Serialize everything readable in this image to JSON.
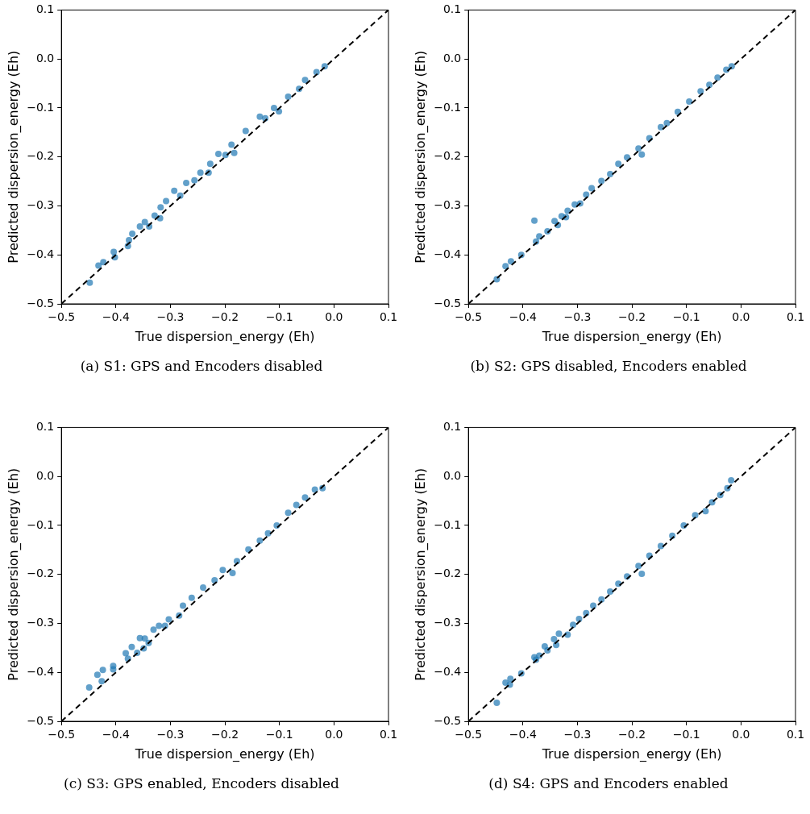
{
  "chart_data": [
    {
      "type": "scatter",
      "xlabel": "True dispersion_energy (Eh)",
      "ylabel": "Predicted dispersion_energy (Eh)",
      "annotations": [
        "(a) S1: GPS and Encoders disabled"
      ],
      "xlim": [
        -0.5,
        0.1
      ],
      "ylim": [
        -0.5,
        0.1
      ],
      "xticks": [
        {
          "value": -0.5,
          "label": "−0.5"
        },
        {
          "value": -0.4,
          "label": "−0.4"
        },
        {
          "value": -0.3,
          "label": "−0.3"
        },
        {
          "value": -0.2,
          "label": "−0.2"
        },
        {
          "value": -0.1,
          "label": "−0.1"
        },
        {
          "value": 0,
          "label": "0.0"
        },
        {
          "value": 0.1,
          "label": "0.1"
        }
      ],
      "yticks": [
        {
          "value": -0.5,
          "label": "−0.5"
        },
        {
          "value": -0.4,
          "label": "−0.4"
        },
        {
          "value": -0.3,
          "label": "−0.3"
        },
        {
          "value": -0.2,
          "label": "−0.2"
        },
        {
          "value": -0.1,
          "label": "−0.1"
        },
        {
          "value": 0,
          "label": "0.0"
        },
        {
          "value": 0.1,
          "label": "0.1"
        }
      ],
      "marker": "circle",
      "series": [
        {
          "type": "scatter",
          "color": "#1f77b4",
          "x": [
            -0.448,
            -0.432,
            -0.423,
            -0.404,
            -0.402,
            -0.378,
            -0.376,
            -0.37,
            -0.356,
            -0.347,
            -0.339,
            -0.329,
            -0.319,
            -0.318,
            -0.308,
            -0.293,
            -0.282,
            -0.271,
            -0.256,
            -0.245,
            -0.23,
            -0.227,
            -0.212,
            -0.199,
            -0.183,
            -0.188,
            -0.162,
            -0.136,
            -0.126,
            -0.101,
            -0.11,
            -0.084,
            -0.064,
            -0.053,
            -0.032,
            -0.017
          ],
          "values": [
            -0.457,
            -0.422,
            -0.415,
            -0.394,
            -0.405,
            -0.382,
            -0.37,
            -0.357,
            -0.342,
            -0.333,
            -0.342,
            -0.32,
            -0.325,
            -0.303,
            -0.29,
            -0.269,
            -0.279,
            -0.253,
            -0.248,
            -0.232,
            -0.232,
            -0.214,
            -0.194,
            -0.196,
            -0.192,
            -0.175,
            -0.147,
            -0.118,
            -0.121,
            -0.107,
            -0.1,
            -0.077,
            -0.061,
            -0.043,
            -0.027,
            -0.015
          ]
        },
        {
          "type": "line",
          "color": "#000000",
          "line_style": "dashed",
          "marker": "none",
          "x": [
            -0.5,
            0.1
          ],
          "values": [
            -0.5,
            0.1
          ]
        }
      ]
    },
    {
      "type": "scatter",
      "xlabel": "True dispersion_energy (Eh)",
      "ylabel": "Predicted dispersion_energy (Eh)",
      "annotations": [
        "(b) S2: GPS disabled, Encoders enabled"
      ],
      "xlim": [
        -0.5,
        0.1
      ],
      "ylim": [
        -0.5,
        0.1
      ],
      "xticks": [
        {
          "value": -0.5,
          "label": "−0.5"
        },
        {
          "value": -0.4,
          "label": "−0.4"
        },
        {
          "value": -0.3,
          "label": "−0.3"
        },
        {
          "value": -0.2,
          "label": "−0.2"
        },
        {
          "value": -0.1,
          "label": "−0.1"
        },
        {
          "value": 0,
          "label": "0.0"
        },
        {
          "value": 0.1,
          "label": "0.1"
        }
      ],
      "yticks": [
        {
          "value": -0.5,
          "label": "−0.5"
        },
        {
          "value": -0.4,
          "label": "−0.4"
        },
        {
          "value": -0.3,
          "label": "−0.3"
        },
        {
          "value": -0.2,
          "label": "−0.2"
        },
        {
          "value": -0.1,
          "label": "−0.1"
        },
        {
          "value": 0,
          "label": "0.0"
        },
        {
          "value": 0.1,
          "label": "0.1"
        }
      ],
      "marker": "circle",
      "series": [
        {
          "type": "scatter",
          "color": "#1f77b4",
          "x": [
            -0.448,
            -0.432,
            -0.422,
            -0.403,
            -0.379,
            -0.376,
            -0.37,
            -0.355,
            -0.342,
            -0.336,
            -0.329,
            -0.321,
            -0.318,
            -0.305,
            -0.295,
            -0.284,
            -0.274,
            -0.256,
            -0.24,
            -0.225,
            -0.209,
            -0.182,
            -0.188,
            -0.168,
            -0.147,
            -0.136,
            -0.116,
            -0.095,
            -0.074,
            -0.058,
            -0.043,
            -0.027,
            -0.017
          ],
          "values": [
            -0.45,
            -0.423,
            -0.413,
            -0.4,
            -0.33,
            -0.373,
            -0.362,
            -0.352,
            -0.331,
            -0.339,
            -0.321,
            -0.323,
            -0.31,
            -0.297,
            -0.295,
            -0.277,
            -0.264,
            -0.249,
            -0.235,
            -0.214,
            -0.201,
            -0.195,
            -0.183,
            -0.162,
            -0.139,
            -0.131,
            -0.108,
            -0.087,
            -0.066,
            -0.053,
            -0.038,
            -0.022,
            -0.015
          ]
        },
        {
          "type": "line",
          "color": "#000000",
          "line_style": "dashed",
          "marker": "none",
          "x": [
            -0.5,
            0.1
          ],
          "values": [
            -0.5,
            0.1
          ]
        }
      ]
    },
    {
      "type": "scatter",
      "xlabel": "True dispersion_energy (Eh)",
      "ylabel": "Predicted dispersion_energy (Eh)",
      "annotations": [
        "(c) S3: GPS enabled, Encoders disabled"
      ],
      "xlim": [
        -0.5,
        0.1
      ],
      "ylim": [
        -0.5,
        0.1
      ],
      "xticks": [
        {
          "value": -0.5,
          "label": "−0.5"
        },
        {
          "value": -0.4,
          "label": "−0.4"
        },
        {
          "value": -0.3,
          "label": "−0.3"
        },
        {
          "value": -0.2,
          "label": "−0.2"
        },
        {
          "value": -0.1,
          "label": "−0.1"
        },
        {
          "value": 0,
          "label": "0.0"
        },
        {
          "value": 0.1,
          "label": "0.1"
        }
      ],
      "yticks": [
        {
          "value": -0.5,
          "label": "−0.5"
        },
        {
          "value": -0.4,
          "label": "−0.4"
        },
        {
          "value": -0.3,
          "label": "−0.3"
        },
        {
          "value": -0.2,
          "label": "−0.2"
        },
        {
          "value": -0.1,
          "label": "−0.1"
        },
        {
          "value": 0,
          "label": "0.0"
        },
        {
          "value": 0.1,
          "label": "0.1"
        }
      ],
      "marker": "circle",
      "series": [
        {
          "type": "scatter",
          "color": "#1f77b4",
          "x": [
            -0.449,
            -0.434,
            -0.424,
            -0.426,
            -0.405,
            -0.405,
            -0.382,
            -0.378,
            -0.371,
            -0.361,
            -0.356,
            -0.349,
            -0.347,
            -0.34,
            -0.331,
            -0.321,
            -0.31,
            -0.303,
            -0.284,
            -0.277,
            -0.261,
            -0.24,
            -0.219,
            -0.204,
            -0.186,
            -0.178,
            -0.157,
            -0.136,
            -0.121,
            -0.105,
            -0.084,
            -0.069,
            -0.053,
            -0.035,
            -0.021
          ],
          "values": [
            -0.431,
            -0.405,
            -0.395,
            -0.418,
            -0.387,
            -0.394,
            -0.361,
            -0.372,
            -0.348,
            -0.36,
            -0.33,
            -0.351,
            -0.331,
            -0.34,
            -0.313,
            -0.305,
            -0.305,
            -0.292,
            -0.284,
            -0.264,
            -0.248,
            -0.227,
            -0.212,
            -0.191,
            -0.197,
            -0.173,
            -0.149,
            -0.131,
            -0.116,
            -0.1,
            -0.074,
            -0.058,
            -0.043,
            -0.027,
            -0.024
          ]
        },
        {
          "type": "line",
          "color": "#000000",
          "line_style": "dashed",
          "marker": "none",
          "x": [
            -0.5,
            0.1
          ],
          "values": [
            -0.5,
            0.1
          ]
        }
      ]
    },
    {
      "type": "scatter",
      "xlabel": "True dispersion_energy (Eh)",
      "ylabel": "Predicted dispersion_energy (Eh)",
      "annotations": [
        "(d) S4: GPS and Encoders enabled"
      ],
      "xlim": [
        -0.5,
        0.1
      ],
      "ylim": [
        -0.5,
        0.1
      ],
      "xticks": [
        {
          "value": -0.5,
          "label": "−0.5"
        },
        {
          "value": -0.4,
          "label": "−0.4"
        },
        {
          "value": -0.3,
          "label": "−0.3"
        },
        {
          "value": -0.2,
          "label": "−0.2"
        },
        {
          "value": -0.1,
          "label": "−0.1"
        },
        {
          "value": 0,
          "label": "0.0"
        },
        {
          "value": 0.1,
          "label": "0.1"
        }
      ],
      "yticks": [
        {
          "value": -0.5,
          "label": "−0.5"
        },
        {
          "value": -0.4,
          "label": "−0.4"
        },
        {
          "value": -0.3,
          "label": "−0.3"
        },
        {
          "value": -0.2,
          "label": "−0.2"
        },
        {
          "value": -0.1,
          "label": "−0.1"
        },
        {
          "value": 0,
          "label": "0.0"
        },
        {
          "value": 0.1,
          "label": "0.1"
        }
      ],
      "marker": "circle",
      "series": [
        {
          "type": "scatter",
          "color": "#1f77b4",
          "x": [
            -0.448,
            -0.432,
            -0.423,
            -0.424,
            -0.403,
            -0.379,
            -0.376,
            -0.37,
            -0.36,
            -0.355,
            -0.343,
            -0.339,
            -0.334,
            -0.318,
            -0.308,
            -0.297,
            -0.284,
            -0.271,
            -0.256,
            -0.24,
            -0.225,
            -0.209,
            -0.182,
            -0.188,
            -0.168,
            -0.147,
            -0.126,
            -0.105,
            -0.084,
            -0.065,
            -0.053,
            -0.038,
            -0.018,
            -0.025
          ],
          "values": [
            -0.462,
            -0.421,
            -0.413,
            -0.425,
            -0.402,
            -0.369,
            -0.374,
            -0.366,
            -0.347,
            -0.355,
            -0.332,
            -0.344,
            -0.321,
            -0.323,
            -0.303,
            -0.291,
            -0.279,
            -0.264,
            -0.251,
            -0.235,
            -0.219,
            -0.204,
            -0.199,
            -0.183,
            -0.162,
            -0.142,
            -0.121,
            -0.1,
            -0.079,
            -0.071,
            -0.053,
            -0.038,
            -0.008,
            -0.024
          ]
        },
        {
          "type": "line",
          "color": "#000000",
          "line_style": "dashed",
          "marker": "none",
          "x": [
            -0.5,
            0.1
          ],
          "values": [
            -0.5,
            0.1
          ]
        }
      ]
    }
  ]
}
